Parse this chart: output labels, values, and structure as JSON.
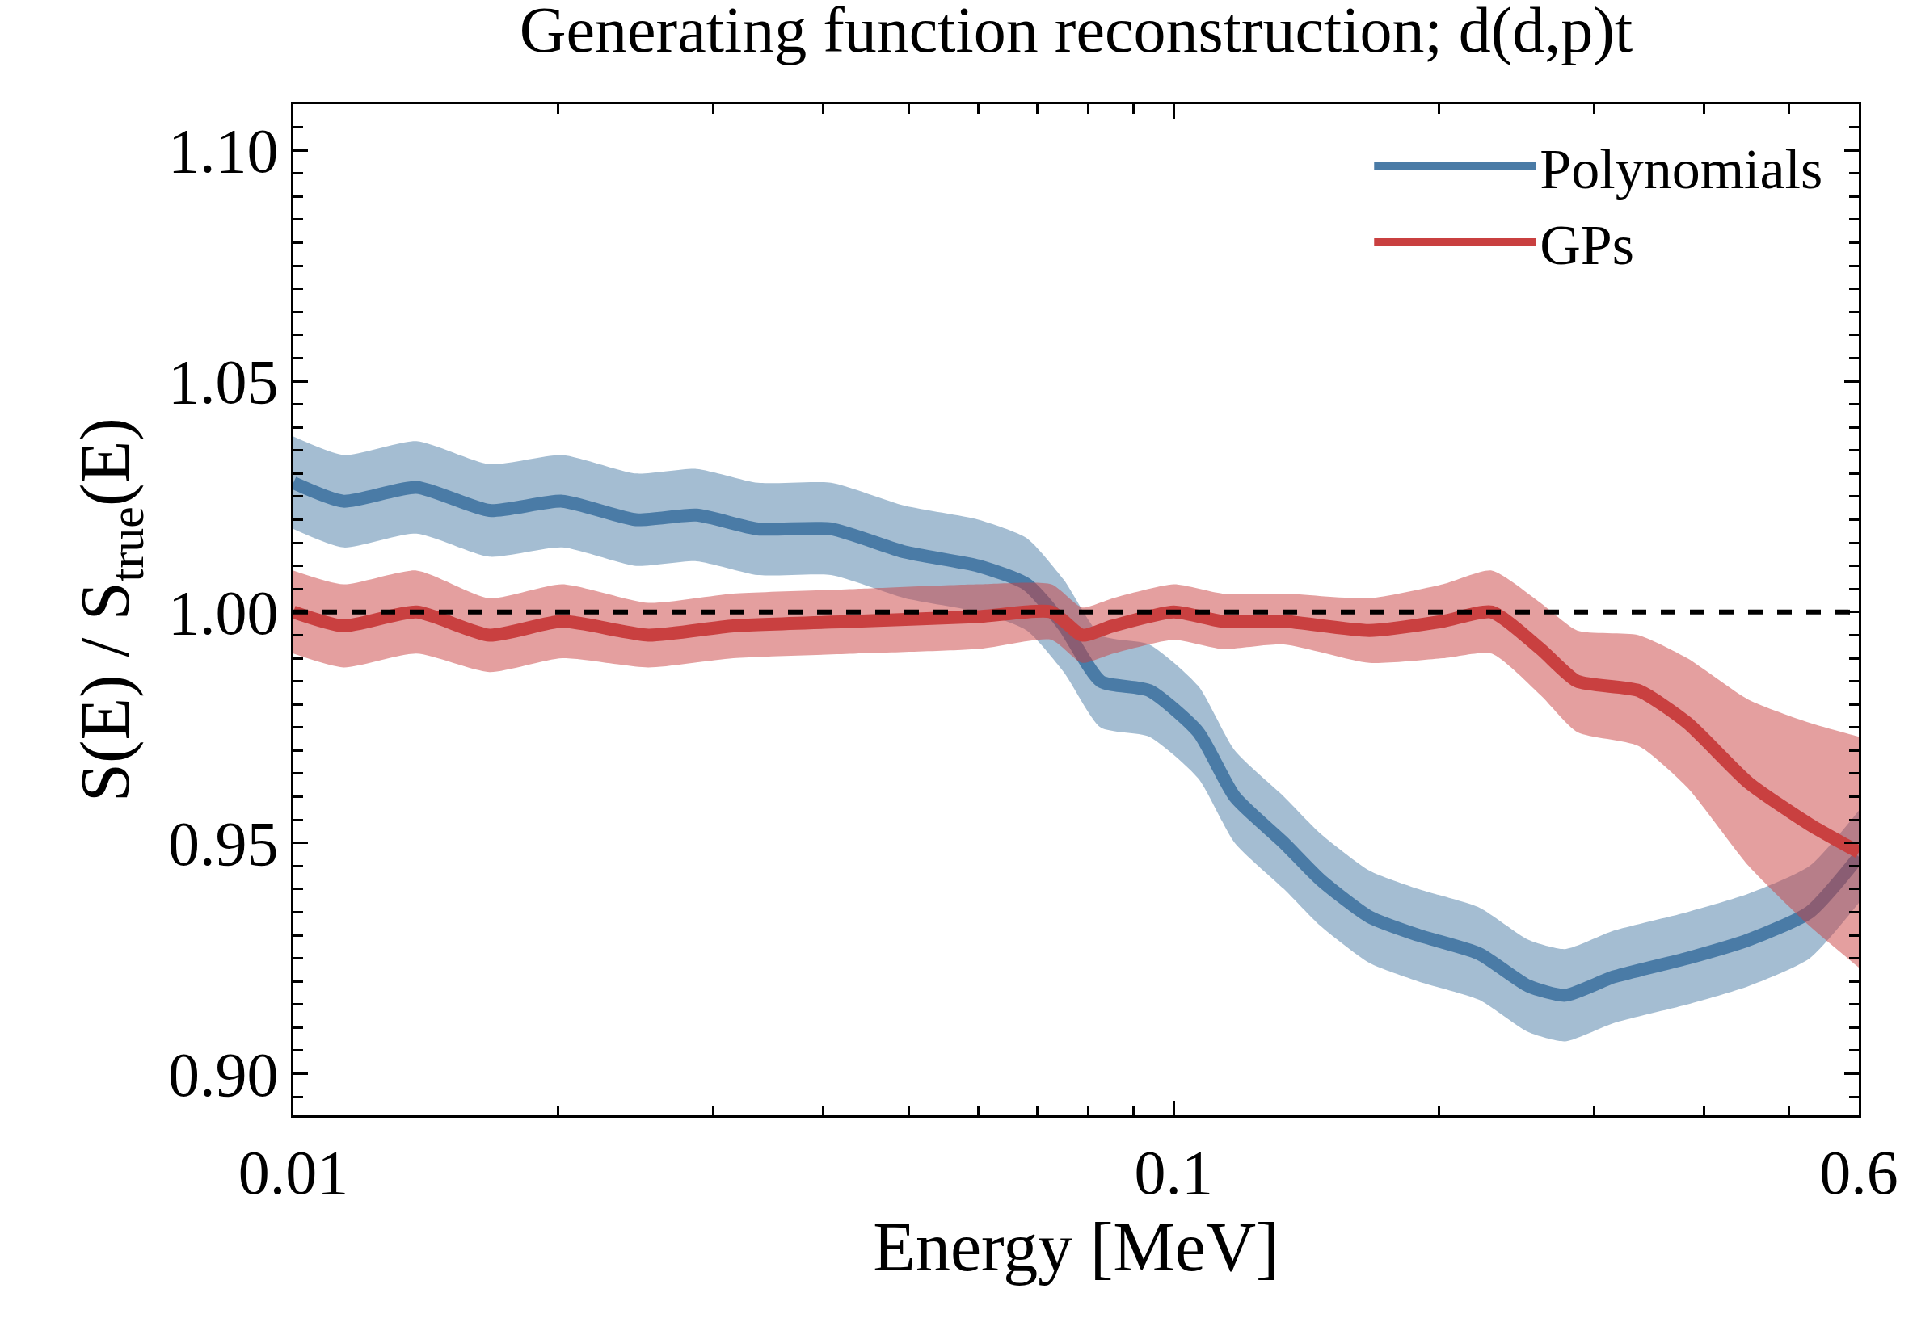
{
  "chart_data": {
    "type": "line",
    "title": "Generating function reconstruction; d(d,p)t",
    "xlabel": "Energy [MeV]",
    "ylabel": "S(E) / S$_{true}$(E)",
    "log": "x",
    "xlim": [
      0.01,
      0.6
    ],
    "ylim": [
      0.891,
      1.11
    ],
    "xticks": [
      0.01,
      {
        "value": 0.02,
        "label": null
      },
      {
        "value": 0.03,
        "label": null
      },
      {
        "value": 0.04,
        "label": null
      },
      {
        "value": 0.05,
        "label": null
      },
      {
        "value": 0.06,
        "label": null
      },
      {
        "value": 0.07,
        "label": null
      },
      {
        "value": 0.08,
        "label": null
      },
      {
        "value": 0.09,
        "label": null
      },
      0.1,
      {
        "value": 0.2,
        "label": null
      },
      {
        "value": 0.3,
        "label": null
      },
      {
        "value": 0.4,
        "label": null
      },
      {
        "value": 0.5,
        "label": null
      },
      0.6
    ],
    "yticks": [
      {
        "value": 0.9,
        "label": "0.90"
      },
      0.95,
      {
        "value": 1.0,
        "label": "1.00"
      },
      1.05,
      {
        "value": 1.1,
        "label": "1.10"
      }
    ],
    "legend": "top right",
    "line_style": "solid",
    "marker": "none",
    "ref_lines": [
      {
        "axis": "y",
        "value": 1.0,
        "label": null,
        "color": "#000000",
        "line_style": "dashed"
      }
    ],
    "series": [
      {
        "name": "Polynomials",
        "color": "#4a7ba6",
        "x": [
          0.01,
          0.0114,
          0.0138,
          0.0167,
          0.0202,
          0.0245,
          0.0287,
          0.0337,
          0.0408,
          0.0495,
          0.06,
          0.0681,
          0.075,
          0.0826,
          0.0938,
          0.1066,
          0.1173,
          0.1334,
          0.1468,
          0.1668,
          0.1896,
          0.2223,
          0.2529,
          0.2783,
          0.3162,
          0.3831,
          0.4498,
          0.5275,
          0.6
        ],
        "values": [
          1.028,
          1.024,
          1.027,
          1.022,
          1.024,
          1.02,
          1.021,
          1.018,
          1.018,
          1.013,
          1.01,
          1.006,
          0.997,
          0.985,
          0.983,
          0.974,
          0.96,
          0.95,
          0.942,
          0.934,
          0.93,
          0.926,
          0.919,
          0.917,
          0.921,
          0.925,
          0.929,
          0.935,
          0.947
        ],
        "lower": [
          1.018,
          1.014,
          1.017,
          1.012,
          1.014,
          1.01,
          1.011,
          1.008,
          1.008,
          1.003,
          1.0,
          0.996,
          0.987,
          0.975,
          0.973,
          0.964,
          0.95,
          0.94,
          0.932,
          0.924,
          0.92,
          0.916,
          0.909,
          0.907,
          0.911,
          0.915,
          0.919,
          0.925,
          0.937
        ],
        "upper": [
          1.038,
          1.034,
          1.037,
          1.032,
          1.034,
          1.03,
          1.031,
          1.028,
          1.028,
          1.023,
          1.02,
          1.016,
          1.007,
          0.995,
          0.993,
          0.984,
          0.97,
          0.96,
          0.952,
          0.944,
          0.94,
          0.936,
          0.929,
          0.927,
          0.931,
          0.935,
          0.939,
          0.945,
          0.957
        ]
      },
      {
        "name": "GPs",
        "color": "#c94040",
        "x": [
          0.01,
          0.0114,
          0.0138,
          0.0167,
          0.0202,
          0.0253,
          0.0316,
          0.0436,
          0.06,
          0.0726,
          0.0787,
          0.0853,
          0.1,
          0.1136,
          0.1334,
          0.1668,
          0.2021,
          0.2297,
          0.261,
          0.2873,
          0.3372,
          0.3831,
          0.4498,
          0.5275,
          0.6
        ],
        "values": [
          1.0,
          0.997,
          1.0,
          0.995,
          0.998,
          0.995,
          0.997,
          0.998,
          0.999,
          1.0,
          0.995,
          0.997,
          1.0,
          0.998,
          0.998,
          0.996,
          0.998,
          1.0,
          0.992,
          0.985,
          0.983,
          0.976,
          0.963,
          0.954,
          0.948
        ],
        "lower": [
          0.991,
          0.988,
          0.991,
          0.987,
          0.99,
          0.988,
          0.99,
          0.991,
          0.992,
          0.994,
          0.989,
          0.991,
          0.994,
          0.992,
          0.993,
          0.989,
          0.99,
          0.991,
          0.982,
          0.974,
          0.971,
          0.962,
          0.945,
          0.932,
          0.923
        ],
        "upper": [
          1.009,
          1.006,
          1.009,
          1.003,
          1.006,
          1.002,
          1.004,
          1.005,
          1.006,
          1.006,
          1.001,
          1.003,
          1.006,
          1.004,
          1.004,
          1.003,
          1.006,
          1.009,
          1.002,
          0.996,
          0.995,
          0.99,
          0.981,
          0.976,
          0.973
        ]
      }
    ]
  }
}
